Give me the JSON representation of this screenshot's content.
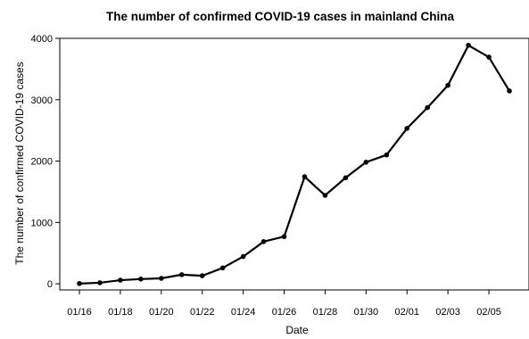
{
  "chart_data": {
    "type": "line",
    "title": "The number of confirmed COVID-19 cases in mainland China",
    "xlabel": "Date",
    "ylabel": "The number of confirmed COVID-19 cases",
    "x_tick_labels": [
      "01/16",
      "01/18",
      "01/20",
      "01/22",
      "01/24",
      "01/26",
      "01/28",
      "01/30",
      "02/01",
      "02/03",
      "02/05"
    ],
    "y_ticks": [
      0,
      1000,
      2000,
      3000,
      4000
    ],
    "ylim": [
      -100,
      4000
    ],
    "x": [
      "01/16",
      "01/17",
      "01/18",
      "01/19",
      "01/20",
      "01/21",
      "01/22",
      "01/23",
      "01/24",
      "01/25",
      "01/26",
      "01/27",
      "01/28",
      "01/29",
      "01/30",
      "01/31",
      "02/01",
      "02/02",
      "02/03",
      "02/04",
      "02/05",
      "02/06"
    ],
    "values": [
      4,
      17,
      59,
      77,
      89,
      149,
      131,
      259,
      444,
      688,
      769,
      1745,
      1441,
      1728,
      1982,
      2100,
      2533,
      2872,
      3235,
      3887,
      3694,
      3143
    ],
    "grid": false,
    "line_color": "#000000"
  }
}
